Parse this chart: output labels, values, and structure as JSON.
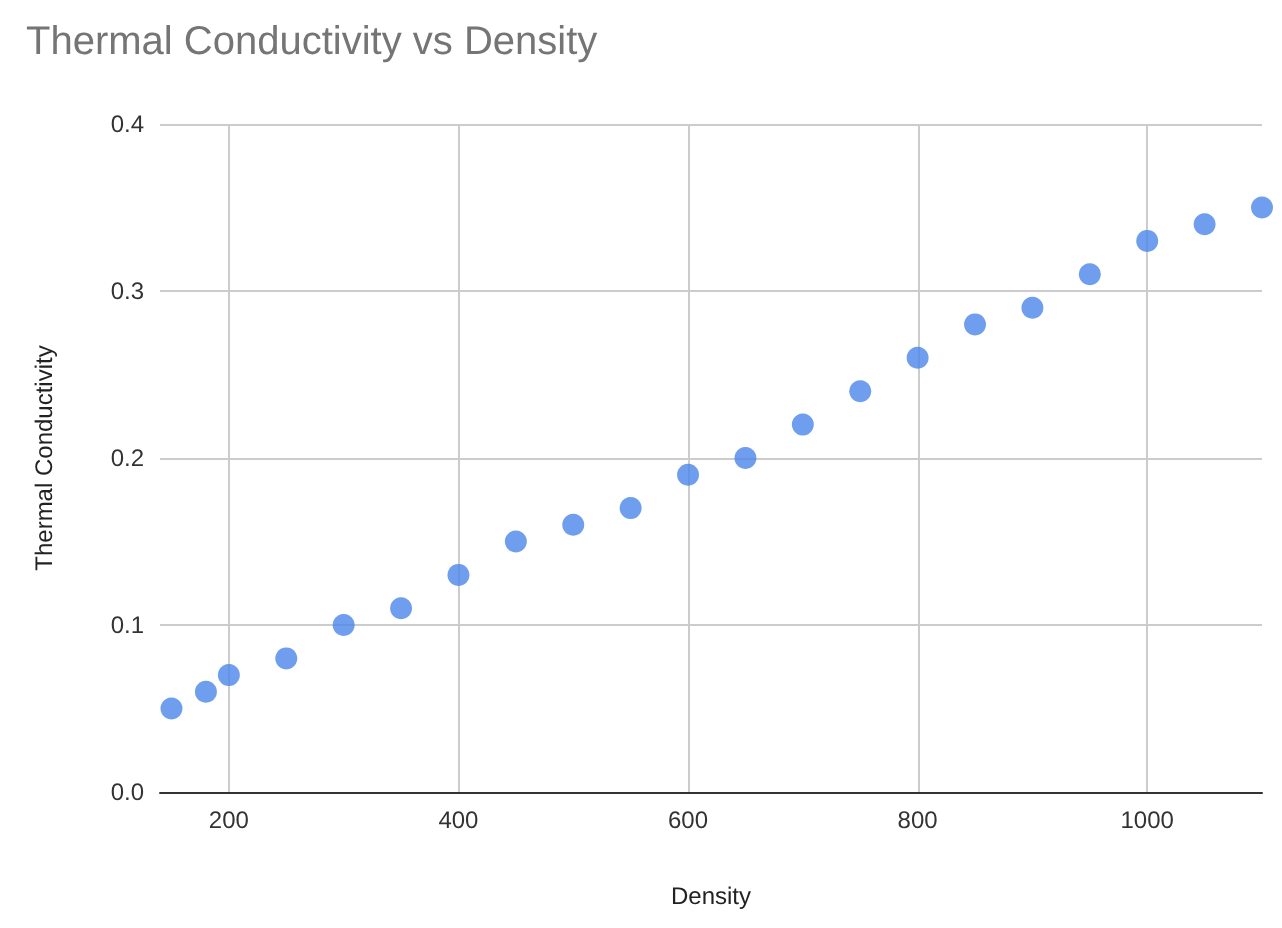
{
  "chart_data": {
    "type": "scatter",
    "title": "Thermal Conductivity vs Density",
    "xlabel": "Density",
    "ylabel": "Thermal Conductivity",
    "x": [
      150,
      180,
      200,
      250,
      300,
      350,
      400,
      450,
      500,
      550,
      600,
      650,
      700,
      750,
      800,
      850,
      900,
      950,
      1000,
      1050,
      1100
    ],
    "series": [
      {
        "color": "#4a86e8",
        "values": [
          0.05,
          0.06,
          0.07,
          0.08,
          0.1,
          0.11,
          0.13,
          0.15,
          0.16,
          0.17,
          0.19,
          0.2,
          0.22,
          0.24,
          0.26,
          0.28,
          0.29,
          0.31,
          0.33,
          0.34,
          0.35
        ]
      }
    ],
    "xlim": [
      140,
      1100
    ],
    "xticks": [
      200,
      400,
      600,
      800,
      1000
    ],
    "ylim": [
      0,
      0.4
    ],
    "yticks": [
      {
        "value": 0,
        "label": "0.0"
      },
      {
        "value": 0.1,
        "label": "0.1"
      },
      {
        "value": 0.2,
        "label": "0.2"
      },
      {
        "value": 0.3,
        "label": "0.3"
      },
      {
        "value": 0.4,
        "label": "0.4"
      }
    ],
    "grid": true,
    "marker": "circle"
  }
}
